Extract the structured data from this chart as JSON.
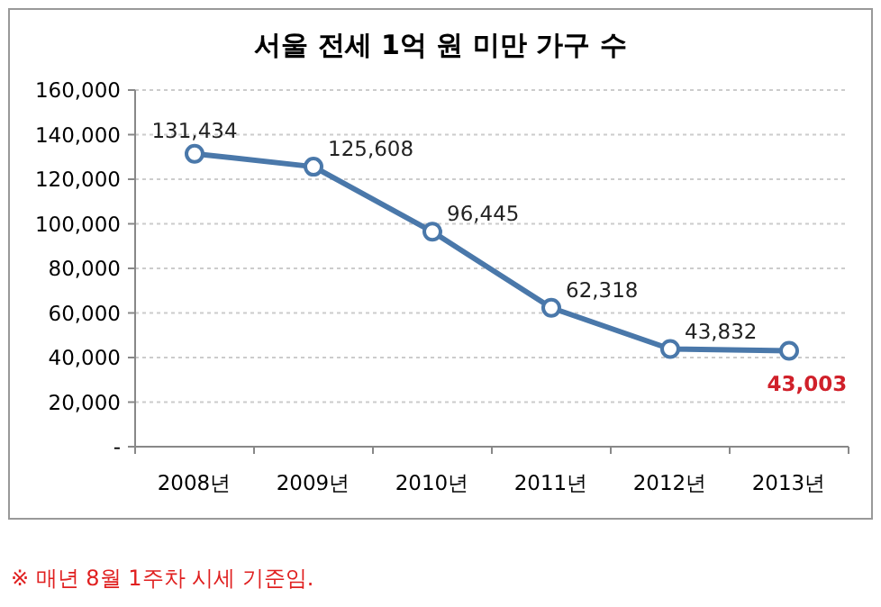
{
  "chart_data": {
    "type": "line",
    "title": "서울 전세 1억 원 미만 가구 수",
    "categories": [
      "2008년",
      "2009년",
      "2010년",
      "2011년",
      "2012년",
      "2013년"
    ],
    "series": [
      {
        "color": "#4a78aa",
        "values": [
          131434,
          125608,
          96445,
          62318,
          43832,
          43003
        ]
      }
    ],
    "ylim": [
      0,
      160000
    ],
    "yticks": [
      {
        "value": 0,
        "label": "-"
      },
      {
        "value": 20000,
        "label": "20,000"
      },
      {
        "value": 40000,
        "label": "40,000"
      },
      {
        "value": 60000,
        "label": "60,000"
      },
      {
        "value": 80000,
        "label": "80,000"
      },
      {
        "value": 100000,
        "label": "100,000"
      },
      {
        "value": 120000,
        "label": "120,000"
      },
      {
        "value": 140000,
        "label": "140,000"
      },
      {
        "value": 160000,
        "label": "160,000"
      }
    ],
    "grid": "y",
    "marker": "circle",
    "line_style": "solid",
    "value_labels": [
      "131,434",
      "125,608",
      "96,445",
      "62,318",
      "43,832",
      "43,003"
    ],
    "annotations": [
      "※ 매년 8월 1주차 시세 기준임."
    ]
  }
}
